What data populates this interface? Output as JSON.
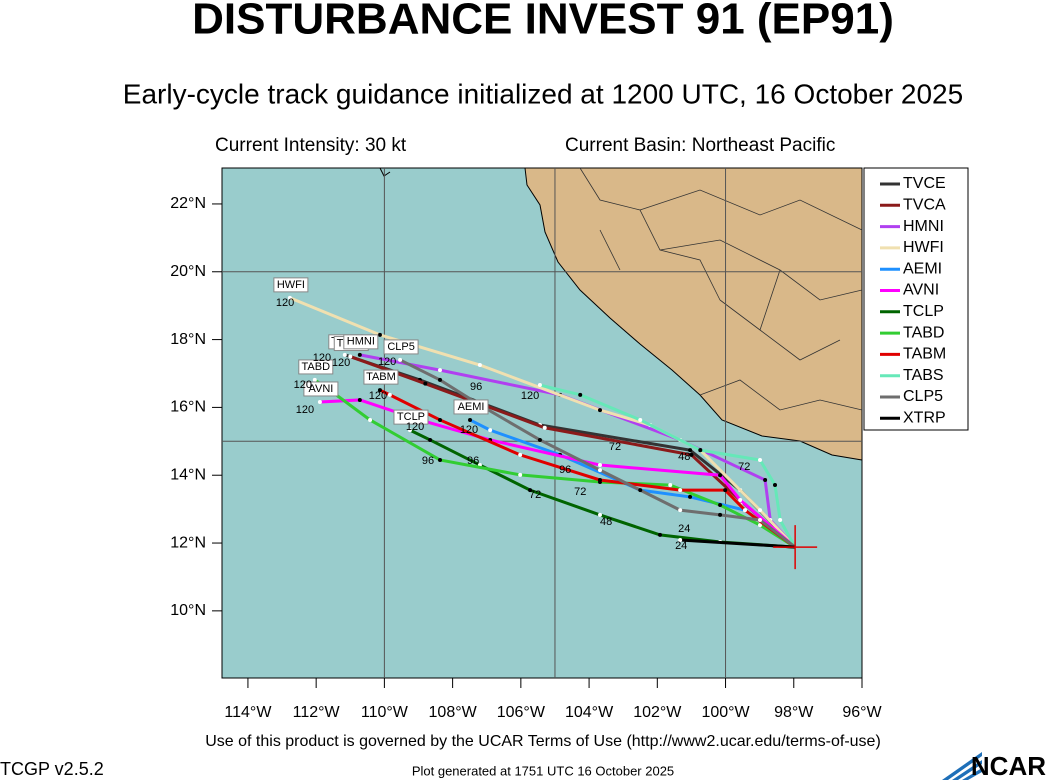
{
  "chart_data": {
    "type": "track-map",
    "title": "DISTURBANCE INVEST 91 (EP91)",
    "subtitle": "Early-cycle track guidance initialized at 1200 UTC, 16 October 2025",
    "current_intensity": "Current Intensity: 30 kt",
    "current_basin": "Current Basin: Northeast Pacific",
    "xlim": [
      -114.76,
      -96
    ],
    "ylim": [
      8.02,
      23.06
    ],
    "xticks": [
      {
        "value": -114,
        "label": "114°W"
      },
      {
        "value": -112,
        "label": "112°W"
      },
      {
        "value": -110,
        "label": "110°W"
      },
      {
        "value": -108,
        "label": "108°W"
      },
      {
        "value": -106,
        "label": "106°W"
      },
      {
        "value": -104,
        "label": "104°W"
      },
      {
        "value": -102,
        "label": "102°W"
      },
      {
        "value": -100,
        "label": "100°W"
      },
      {
        "value": -98,
        "label": "98°W"
      },
      {
        "value": -96,
        "label": "96°W"
      }
    ],
    "yticks": [
      {
        "value": 10,
        "label": "10°N"
      },
      {
        "value": 12,
        "label": "12°N"
      },
      {
        "value": 14,
        "label": "14°N"
      },
      {
        "value": 16,
        "label": "16°N"
      },
      {
        "value": 18,
        "label": "18°N"
      },
      {
        "value": 20,
        "label": "20°N"
      },
      {
        "value": 22,
        "label": "22°N"
      }
    ],
    "grid_lon": [
      -110,
      -105,
      -100
    ],
    "grid_lat": [
      15,
      20
    ],
    "series": [
      {
        "name": "TVCE",
        "color": "#333333",
        "x": [
          -97.96,
          -99.57,
          -101.04,
          -105.44,
          -108.96,
          -111.16
        ],
        "values": [
          11.88,
          13.56,
          14.74,
          15.48,
          16.81,
          17.55
        ]
      },
      {
        "name": "TVCA",
        "color": "#8b1a1a",
        "x": [
          -97.96,
          -99.5,
          -101.0,
          -105.3,
          -108.8,
          -111.0
        ],
        "values": [
          11.88,
          13.2,
          14.6,
          15.4,
          16.7,
          17.5
        ]
      },
      {
        "name": "HMNI",
        "color": "#b040f0",
        "x": [
          -97.96,
          -98.69,
          -98.84,
          -101.33,
          -104.85,
          -108.37,
          -110.72
        ],
        "values": [
          11.88,
          12.68,
          13.86,
          15.04,
          16.37,
          17.1,
          17.55
        ]
      },
      {
        "name": "HWFI",
        "color": "#f0e0b0",
        "x": [
          -97.96,
          -98.99,
          -100.74,
          -102.21,
          -103.68,
          -107.2,
          -110.13,
          -112.77
        ],
        "values": [
          11.88,
          12.97,
          14.74,
          15.48,
          15.92,
          17.25,
          18.14,
          19.23
        ]
      },
      {
        "name": "AEMI",
        "color": "#1e90ff",
        "x": [
          -97.96,
          -99.43,
          -101.04,
          -102.5,
          -104.85,
          -106.9,
          -107.49
        ],
        "values": [
          11.88,
          12.97,
          13.36,
          13.56,
          14.6,
          15.33,
          15.63
        ]
      },
      {
        "name": "AVNI",
        "color": "#ff00ff",
        "x": [
          -97.96,
          -99.57,
          -100.16,
          -103.68,
          -106.9,
          -108.96,
          -110.72,
          -111.89
        ],
        "values": [
          11.88,
          13.27,
          14.0,
          14.3,
          15.04,
          15.63,
          16.22,
          16.16
        ]
      },
      {
        "name": "TCLP",
        "color": "#006400",
        "x": [
          -97.96,
          -100.16,
          -101.92,
          -103.68,
          -105.73,
          -107.2,
          -108.66,
          -109.25
        ],
        "values": [
          11.88,
          12.03,
          12.24,
          12.83,
          13.56,
          14.3,
          15.04,
          15.33
        ]
      },
      {
        "name": "TABD",
        "color": "#32cd32",
        "x": [
          -97.96,
          -98.99,
          -100.16,
          -101.62,
          -103.68,
          -106.02,
          -108.37,
          -110.42,
          -111.6,
          -112.04
        ],
        "values": [
          11.88,
          12.53,
          13.12,
          13.71,
          13.8,
          14.01,
          14.45,
          15.63,
          16.51,
          16.81
        ]
      },
      {
        "name": "TABM",
        "color": "#e00000",
        "x": [
          -97.96,
          -99.43,
          -100.01,
          -101.33,
          -103.68,
          -106.02,
          -108.37,
          -109.84,
          -110.13
        ],
        "values": [
          11.88,
          12.97,
          13.56,
          13.56,
          13.86,
          14.6,
          15.63,
          16.37,
          16.51
        ]
      },
      {
        "name": "TABS",
        "color": "#66e8b8",
        "x": [
          -97.96,
          -98.4,
          -98.55,
          -98.99,
          -100.74,
          -102.5,
          -104.26,
          -105.44
        ],
        "values": [
          11.88,
          12.68,
          13.71,
          14.45,
          14.74,
          15.63,
          16.37,
          16.66
        ]
      },
      {
        "name": "CLP5",
        "color": "#6e6e6e",
        "x": [
          -97.96,
          -98.99,
          -100.16,
          -101.33,
          -102.5,
          -103.68,
          -105.44,
          -107.2,
          -108.37,
          -109.54
        ],
        "values": [
          11.88,
          12.68,
          12.83,
          12.97,
          13.56,
          14.15,
          15.04,
          16.07,
          16.81,
          17.4
        ]
      },
      {
        "name": "XTRP",
        "color": "#000000",
        "x": [
          -97.96,
          -101.33
        ],
        "values": [
          11.88,
          12.09
        ]
      }
    ],
    "hour_labels": [
      {
        "text": "120",
        "lon": -112.91,
        "lat": 19.08
      },
      {
        "text": "120",
        "lon": -111.83,
        "lat": 17.46
      },
      {
        "text": "120",
        "lon": -111.27,
        "lat": 17.31
      },
      {
        "text": "120",
        "lon": -109.92,
        "lat": 17.34
      },
      {
        "text": "120",
        "lon": -112.39,
        "lat": 16.66
      },
      {
        "text": "120",
        "lon": -112.33,
        "lat": 15.92
      },
      {
        "text": "120",
        "lon": -110.19,
        "lat": 16.34
      },
      {
        "text": "120",
        "lon": -109.1,
        "lat": 15.42
      },
      {
        "text": "120",
        "lon": -107.52,
        "lat": 15.33
      },
      {
        "text": "120",
        "lon": -105.73,
        "lat": 16.34
      },
      {
        "text": "96",
        "lon": -107.31,
        "lat": 16.6
      },
      {
        "text": "96",
        "lon": -108.72,
        "lat": 14.42
      },
      {
        "text": "96",
        "lon": -107.4,
        "lat": 14.42
      },
      {
        "text": "96",
        "lon": -104.7,
        "lat": 14.15
      },
      {
        "text": "72",
        "lon": -105.58,
        "lat": 13.42
      },
      {
        "text": "72",
        "lon": -104.26,
        "lat": 13.5
      },
      {
        "text": "72",
        "lon": -103.24,
        "lat": 14.83
      },
      {
        "text": "72",
        "lon": -99.45,
        "lat": 14.24
      },
      {
        "text": "48",
        "lon": -103.5,
        "lat": 12.62
      },
      {
        "text": "48",
        "lon": -101.21,
        "lat": 14.54
      },
      {
        "text": "24",
        "lon": -101.21,
        "lat": 12.41
      },
      {
        "text": "24",
        "lon": -101.3,
        "lat": 11.91
      }
    ]
  },
  "footer": {
    "terms": "Use of this product is governed by the UCAR Terms of Use (http://www2.ucar.edu/terms-of-use)",
    "version": "TCGP v2.5.2",
    "generated": "Plot generated at 1751 UTC  16 October 2025",
    "logo": "NCAR"
  }
}
